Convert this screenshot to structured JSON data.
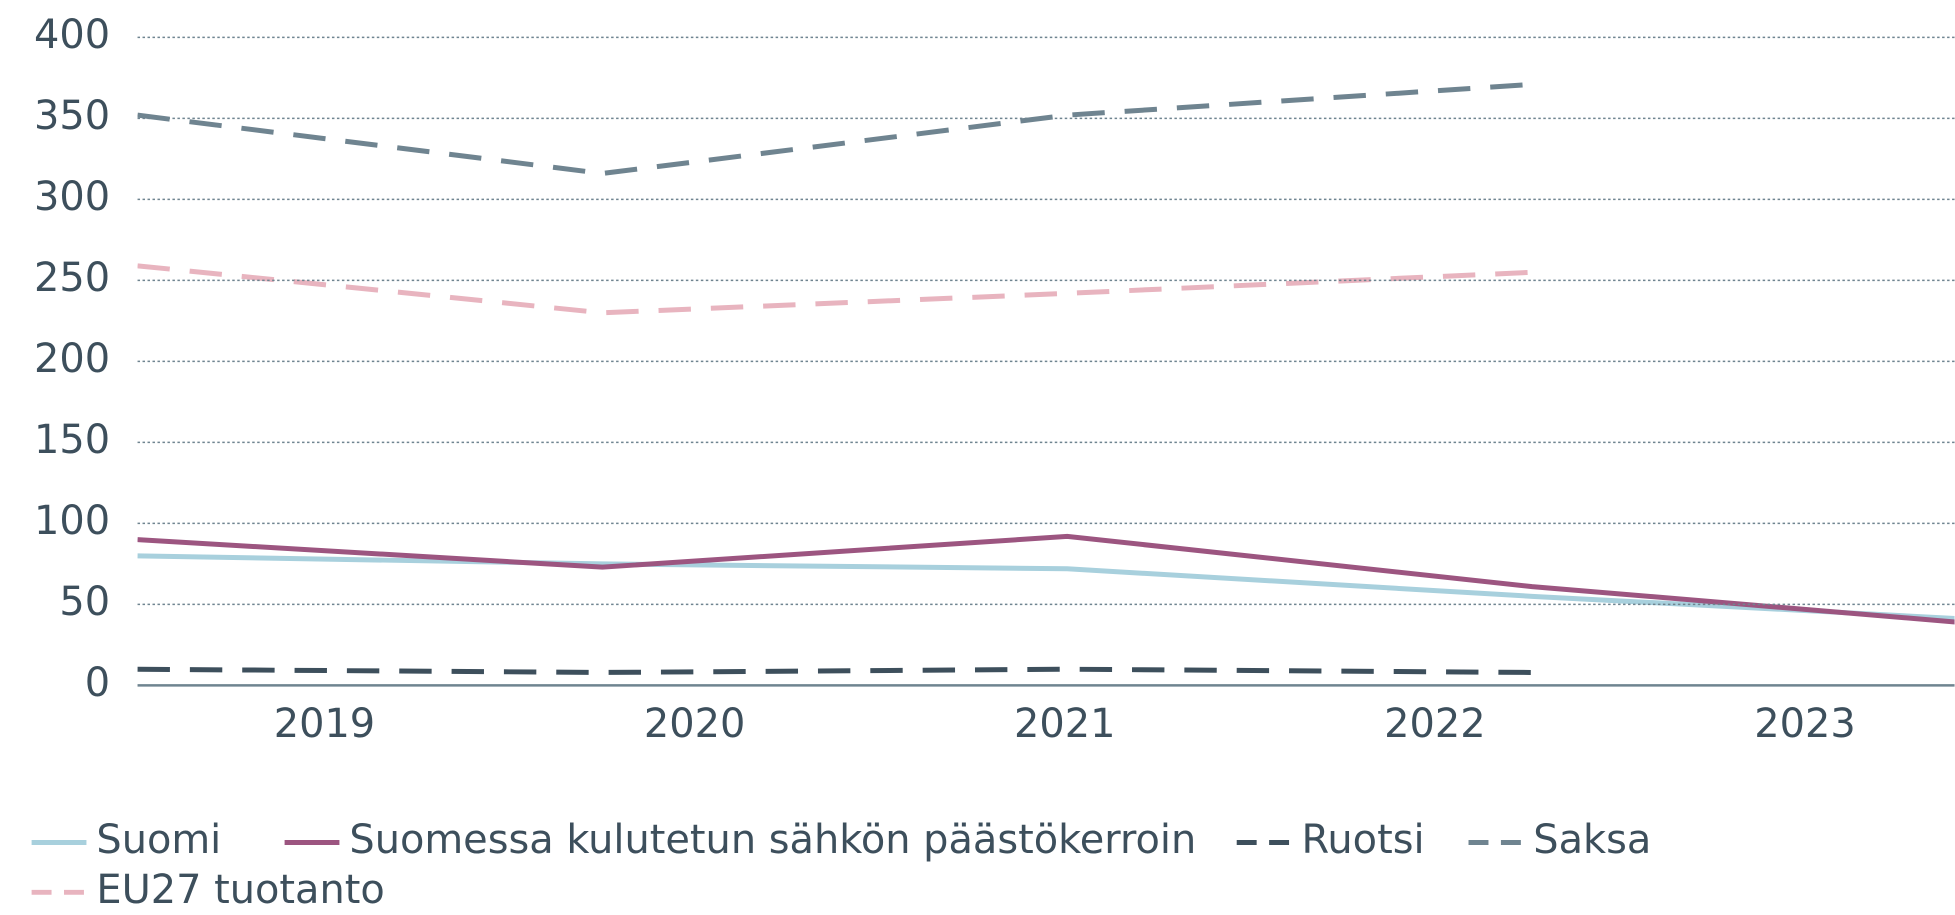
{
  "chart_data": {
    "type": "line",
    "categories": [
      "2019",
      "2020",
      "2021",
      "2022",
      "2023"
    ],
    "ylim": [
      0,
      400
    ],
    "yticks": [
      0,
      50,
      100,
      150,
      200,
      250,
      300,
      350,
      400
    ],
    "grid": true,
    "series": [
      {
        "name": "Suomi",
        "color": "#a8d0dd",
        "dashed": false,
        "values": [
          80,
          75,
          72,
          55,
          40
        ]
      },
      {
        "name": "Suomessa kulutetun sähkön päästökerroin",
        "color": "#9c5580",
        "dashed": false,
        "values": [
          90,
          73,
          92,
          61,
          37
        ]
      },
      {
        "name": "Ruotsi",
        "color": "#3d4f5c",
        "dashed": true,
        "values": [
          10,
          8,
          10,
          8,
          null
        ]
      },
      {
        "name": "Saksa",
        "color": "#6f8490",
        "dashed": true,
        "values": [
          352,
          316,
          352,
          371,
          null
        ]
      },
      {
        "name": "EU27 tuotanto",
        "color": "#e8b4bf",
        "dashed": true,
        "values": [
          259,
          230,
          242,
          255,
          null
        ]
      }
    ]
  }
}
